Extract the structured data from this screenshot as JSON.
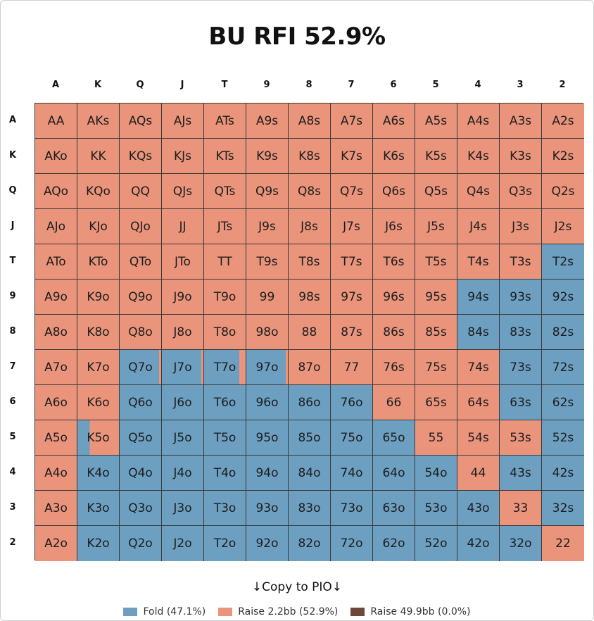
{
  "title": "BU RFI 52.9%",
  "ranks": [
    "A",
    "K",
    "Q",
    "J",
    "T",
    "9",
    "8",
    "7",
    "6",
    "5",
    "4",
    "3",
    "2"
  ],
  "colors": {
    "fold": "#6c9fc0",
    "raise_small": "#e9947b",
    "raise_large": "#6d4739"
  },
  "grid": [
    [
      "AA",
      "AKs",
      "AQs",
      "AJs",
      "ATs",
      "A9s",
      "A8s",
      "A7s",
      "A6s",
      "A5s",
      "A4s",
      "A3s",
      "A2s"
    ],
    [
      "AKo",
      "KK",
      "KQs",
      "KJs",
      "KTs",
      "K9s",
      "K8s",
      "K7s",
      "K6s",
      "K5s",
      "K4s",
      "K3s",
      "K2s"
    ],
    [
      "AQo",
      "KQo",
      "QQ",
      "QJs",
      "QTs",
      "Q9s",
      "Q8s",
      "Q7s",
      "Q6s",
      "Q5s",
      "Q4s",
      "Q3s",
      "Q2s"
    ],
    [
      "AJo",
      "KJo",
      "QJo",
      "JJ",
      "JTs",
      "J9s",
      "J8s",
      "J7s",
      "J6s",
      "J5s",
      "J4s",
      "J3s",
      "J2s"
    ],
    [
      "ATo",
      "KTo",
      "QTo",
      "JTo",
      "TT",
      "T9s",
      "T8s",
      "T7s",
      "T6s",
      "T5s",
      "T4s",
      "T3s",
      "T2s"
    ],
    [
      "A9o",
      "K9o",
      "Q9o",
      "J9o",
      "T9o",
      "99",
      "98s",
      "97s",
      "96s",
      "95s",
      "94s",
      "93s",
      "92s"
    ],
    [
      "A8o",
      "K8o",
      "Q8o",
      "J8o",
      "T8o",
      "98o",
      "88",
      "87s",
      "86s",
      "85s",
      "84s",
      "83s",
      "82s"
    ],
    [
      "A7o",
      "K7o",
      "Q7o",
      "J7o",
      "T7o",
      "97o",
      "87o",
      "77",
      "76s",
      "75s",
      "74s",
      "73s",
      "72s"
    ],
    [
      "A6o",
      "K6o",
      "Q6o",
      "J6o",
      "T6o",
      "96o",
      "86o",
      "76o",
      "66",
      "65s",
      "64s",
      "63s",
      "62s"
    ],
    [
      "A5o",
      "K5o",
      "Q5o",
      "J5o",
      "T5o",
      "95o",
      "85o",
      "75o",
      "65o",
      "55",
      "54s",
      "53s",
      "52s"
    ],
    [
      "A4o",
      "K4o",
      "Q4o",
      "J4o",
      "T4o",
      "94o",
      "84o",
      "74o",
      "64o",
      "54o",
      "44",
      "43s",
      "42s"
    ],
    [
      "A3o",
      "K3o",
      "Q3o",
      "J3o",
      "T3o",
      "93o",
      "83o",
      "73o",
      "63o",
      "53o",
      "43o",
      "33",
      "32s"
    ],
    [
      "A2o",
      "K2o",
      "Q2o",
      "J2o",
      "T2o",
      "92o",
      "82o",
      "72o",
      "62o",
      "52o",
      "42o",
      "32o",
      "22"
    ]
  ],
  "raise_frequency": [
    [
      1,
      1,
      1,
      1,
      1,
      1,
      1,
      1,
      1,
      1,
      1,
      1,
      1
    ],
    [
      1,
      1,
      1,
      1,
      1,
      1,
      1,
      1,
      1,
      1,
      1,
      1,
      1
    ],
    [
      1,
      1,
      1,
      1,
      1,
      1,
      1,
      1,
      1,
      1,
      1,
      1,
      1
    ],
    [
      1,
      1,
      1,
      1,
      1,
      1,
      1,
      1,
      1,
      1,
      1,
      1,
      1
    ],
    [
      1,
      1,
      1,
      1,
      1,
      1,
      1,
      1,
      1,
      1,
      1,
      1,
      0
    ],
    [
      1,
      1,
      1,
      1,
      1,
      1,
      1,
      1,
      1,
      1,
      0,
      0,
      0
    ],
    [
      1,
      1,
      1,
      1,
      1,
      1,
      1,
      1,
      1,
      1,
      0,
      0,
      0
    ],
    [
      1,
      1,
      0.05,
      0.05,
      0.15,
      0.05,
      1,
      1,
      1,
      1,
      1,
      0,
      0
    ],
    [
      1,
      1,
      0,
      0,
      0,
      0,
      0,
      0,
      1,
      1,
      1,
      0,
      0
    ],
    [
      1,
      0.7,
      0,
      0,
      0,
      0,
      0,
      0,
      0,
      1,
      1,
      1,
      0
    ],
    [
      1,
      0,
      0,
      0,
      0,
      0,
      0,
      0,
      0,
      0,
      1,
      0,
      0
    ],
    [
      1,
      0,
      0,
      0,
      0,
      0,
      0,
      0,
      0,
      0,
      0,
      1,
      0
    ],
    [
      1,
      0,
      0,
      0,
      0,
      0,
      0,
      0,
      0,
      0,
      0,
      0,
      1
    ]
  ],
  "copy_label": "↓Copy to PIO↓",
  "legend": [
    {
      "label": "Fold (47.1%)",
      "color": "#6c9fc0"
    },
    {
      "label": "Raise 2.2bb (52.9%)",
      "color": "#e9947b"
    },
    {
      "label": "Raise 49.9bb (0.0%)",
      "color": "#6d4739"
    }
  ]
}
